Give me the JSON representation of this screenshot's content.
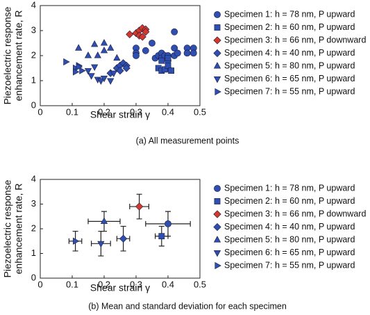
{
  "chart_data": [
    {
      "type": "scatter",
      "caption": "(a) All measurement points",
      "xlabel": "Shear strain γ",
      "ylabel": [
        "Piezoelectric response",
        "enhancement rate, R"
      ],
      "xlim": [
        0,
        0.5
      ],
      "xticks": [
        0,
        0.1,
        0.2,
        0.3,
        0.4,
        0.5
      ],
      "ylim": [
        0,
        4
      ],
      "yticks": [
        0,
        1,
        2,
        3,
        4
      ],
      "series": [
        {
          "name": "Specimen 1: h = 78 nm, P upward",
          "marker": "circle",
          "color": "#2f4fb0",
          "x": [
            0.3,
            0.3,
            0.3,
            0.33,
            0.35,
            0.36,
            0.37,
            0.38,
            0.38,
            0.39,
            0.4,
            0.4,
            0.42,
            0.42,
            0.42,
            0.43,
            0.46,
            0.46,
            0.48,
            0.48,
            0.4
          ],
          "values": [
            2.3,
            2.1,
            2.0,
            2.2,
            2.5,
            1.9,
            2.0,
            2.1,
            1.9,
            2.0,
            2.0,
            1.8,
            2.95,
            2.3,
            2.0,
            2.1,
            2.3,
            2.1,
            2.3,
            2.1,
            1.5
          ]
        },
        {
          "name": "Specimen 2: h = 60 nm, P upward",
          "marker": "square",
          "color": "#2f4fb0",
          "x": [
            0.37,
            0.38,
            0.39,
            0.4,
            0.41,
            0.38,
            0.4
          ],
          "values": [
            1.5,
            1.4,
            1.45,
            1.6,
            1.4,
            1.8,
            1.9
          ]
        },
        {
          "name": "Specimen 3: h = 66 nm, P downward",
          "marker": "diamond",
          "color": "#d2392b",
          "x": [
            0.28,
            0.3,
            0.31,
            0.32,
            0.33,
            0.31,
            0.33,
            0.32
          ],
          "values": [
            2.85,
            2.9,
            3.0,
            3.1,
            3.05,
            2.8,
            2.95,
            2.75
          ]
        },
        {
          "name": "Specimen 4: h = 40 nm, P upward",
          "marker": "diamond",
          "color": "#2f4fb0",
          "x": [
            0.22,
            0.24,
            0.25,
            0.26,
            0.27,
            0.25,
            0.27
          ],
          "values": [
            1.3,
            1.5,
            1.6,
            1.7,
            1.6,
            1.4,
            1.5
          ]
        },
        {
          "name": "Specimen 5: h = 80 nm, P upward",
          "marker": "up",
          "color": "#2f4fb0",
          "x": [
            0.12,
            0.15,
            0.17,
            0.18,
            0.2,
            0.22,
            0.24,
            0.2
          ],
          "values": [
            2.3,
            2.0,
            2.45,
            2.0,
            2.2,
            2.3,
            1.9,
            2.5
          ]
        },
        {
          "name": "Specimen 6: h = 65 nm, P upward",
          "marker": "down",
          "color": "#2f4fb0",
          "x": [
            0.15,
            0.16,
            0.18,
            0.19,
            0.2,
            0.22,
            0.23,
            0.17
          ],
          "values": [
            1.4,
            1.2,
            1.05,
            1.0,
            1.1,
            1.0,
            1.3,
            1.55
          ]
        },
        {
          "name": "Specimen 7: h = 55 nm, P upward",
          "marker": "right",
          "color": "#2f4fb0",
          "x": [
            0.08,
            0.11,
            0.11,
            0.12,
            0.13,
            0.12
          ],
          "values": [
            1.75,
            1.5,
            1.35,
            1.6,
            1.4,
            1.55
          ]
        }
      ]
    },
    {
      "type": "scatter",
      "caption": "(b) Mean and standard deviation for each specimen",
      "xlabel": "Shear strain γ",
      "ylabel": [
        "Piezoelectric response",
        "enhancement rate, R"
      ],
      "xlim": [
        0,
        0.5
      ],
      "xticks": [
        0,
        0.1,
        0.2,
        0.3,
        0.4,
        0.5
      ],
      "ylim": [
        0,
        4
      ],
      "yticks": [
        0,
        1,
        2,
        3,
        4
      ],
      "series": [
        {
          "name": "Specimen 1: h = 78 nm, P upward",
          "marker": "circle",
          "color": "#2f4fb0",
          "x": [
            0.4
          ],
          "values": [
            2.2
          ],
          "xerr": [
            0.07
          ],
          "yerr": [
            0.5
          ]
        },
        {
          "name": "Specimen 2: h = 60 nm, P upward",
          "marker": "square",
          "color": "#2f4fb0",
          "x": [
            0.38
          ],
          "values": [
            1.7
          ],
          "xerr": [
            0.02
          ],
          "yerr": [
            0.4
          ]
        },
        {
          "name": "Specimen 3: h = 66 nm, P downward",
          "marker": "diamond",
          "color": "#d2392b",
          "x": [
            0.31
          ],
          "values": [
            2.9
          ],
          "xerr": [
            0.03
          ],
          "yerr": [
            0.5
          ]
        },
        {
          "name": "Specimen 4: h = 40 nm, P upward",
          "marker": "diamond",
          "color": "#2f4fb0",
          "x": [
            0.26
          ],
          "values": [
            1.6
          ],
          "xerr": [
            0.02
          ],
          "yerr": [
            0.5
          ]
        },
        {
          "name": "Specimen 5: h = 80 nm, P upward",
          "marker": "up",
          "color": "#2f4fb0",
          "x": [
            0.2
          ],
          "values": [
            2.3
          ],
          "xerr": [
            0.05
          ],
          "yerr": [
            0.4
          ]
        },
        {
          "name": "Specimen 6: h = 65 nm, P upward",
          "marker": "down",
          "color": "#2f4fb0",
          "x": [
            0.19
          ],
          "values": [
            1.4
          ],
          "xerr": [
            0.03
          ],
          "yerr": [
            0.5
          ]
        },
        {
          "name": "Specimen 7: h = 55 nm, P upward",
          "marker": "right",
          "color": "#2f4fb0",
          "x": [
            0.11
          ],
          "values": [
            1.5
          ],
          "xerr": [
            0.02
          ],
          "yerr": [
            0.4
          ]
        }
      ]
    }
  ]
}
